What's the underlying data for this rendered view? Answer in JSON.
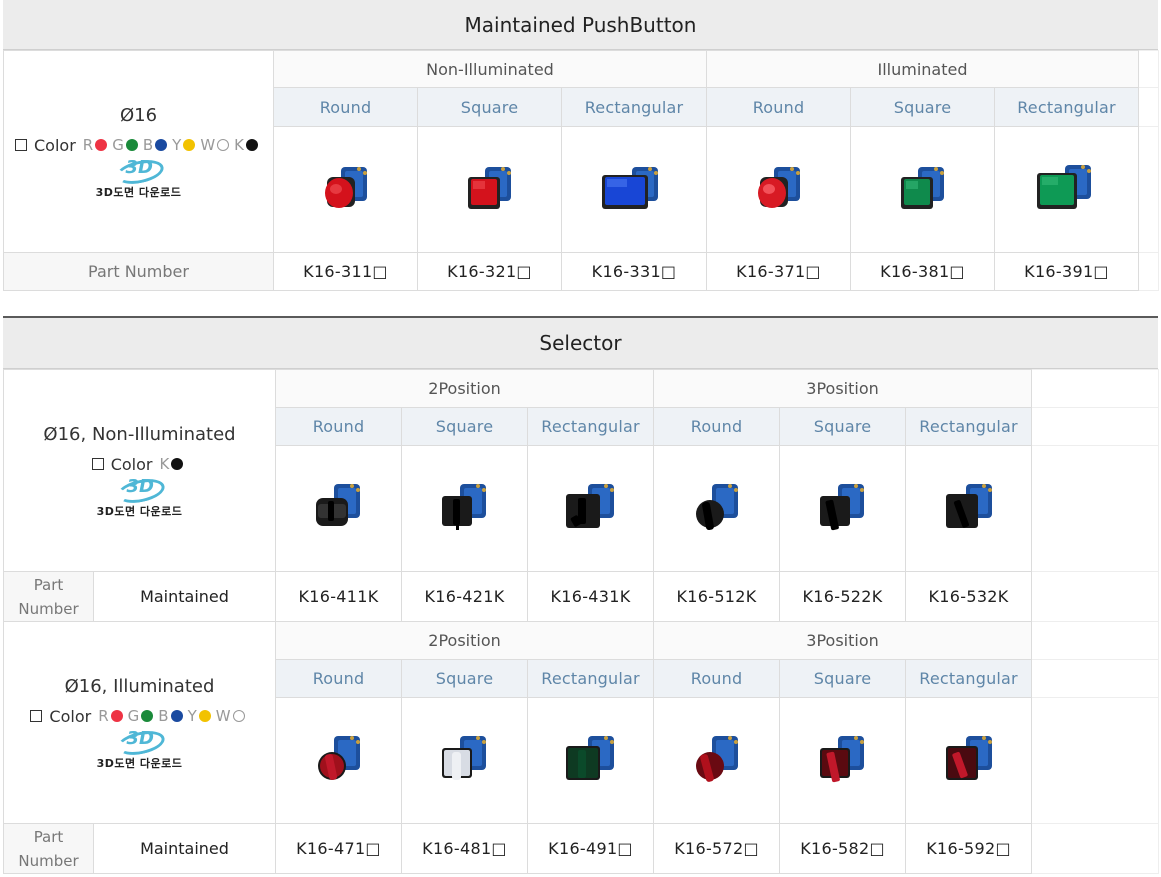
{
  "pushbutton": {
    "title": "Maintained PushButton",
    "desc_title": "Ø16",
    "color_label": "Color",
    "colors": [
      {
        "letter": "R",
        "hex": "#ee3344"
      },
      {
        "letter": "G",
        "hex": "#1a8a3a"
      },
      {
        "letter": "B",
        "hex": "#1a4aa0"
      },
      {
        "letter": "Y",
        "hex": "#f2c200"
      },
      {
        "letter": "W",
        "hex": "#ffffff"
      },
      {
        "letter": "K",
        "hex": "#111111"
      }
    ],
    "logo_text": "3D",
    "logo_caption": "3D도면 다운로드",
    "groups": [
      "Non-Illuminated",
      "Illuminated"
    ],
    "shapes": [
      "Round",
      "Square",
      "Rectangular",
      "Round",
      "Square",
      "Rectangular"
    ],
    "images": [
      "red-round-pushbutton",
      "red-square-pushbutton",
      "blue-rectangular-pushbutton",
      "red-round-illuminated-pushbutton",
      "green-square-illuminated-pushbutton",
      "green-rectangular-illuminated-pushbutton"
    ],
    "part_label": "Part Number",
    "parts": [
      "K16-311□",
      "K16-321□",
      "K16-331□",
      "K16-371□",
      "K16-381□",
      "K16-391□"
    ]
  },
  "selector": {
    "title": "Selector",
    "non_illuminated": {
      "desc_title": "Ø16, Non-Illuminated",
      "color_label": "Color",
      "colors": [
        {
          "letter": "K",
          "hex": "#111111"
        }
      ],
      "groups": [
        "2Position",
        "3Position"
      ],
      "shapes": [
        "Round",
        "Square",
        "Rectangular",
        "Round",
        "Square",
        "Rectangular"
      ],
      "part_label_1": "Part",
      "part_label_2": "Number",
      "type_label": "Maintained",
      "parts": [
        "K16-411K",
        "K16-421K",
        "K16-431K",
        "K16-512K",
        "K16-522K",
        "K16-532K"
      ]
    },
    "illuminated": {
      "desc_title": "Ø16, Illuminated",
      "color_label": "Color",
      "colors": [
        {
          "letter": "R",
          "hex": "#ee3344"
        },
        {
          "letter": "G",
          "hex": "#1a8a3a"
        },
        {
          "letter": "B",
          "hex": "#1a4aa0"
        },
        {
          "letter": "Y",
          "hex": "#f2c200"
        },
        {
          "letter": "W",
          "hex": "#ffffff"
        }
      ],
      "groups": [
        "2Position",
        "3Position"
      ],
      "shapes": [
        "Round",
        "Square",
        "Rectangular",
        "Round",
        "Square",
        "Rectangular"
      ],
      "part_label_1": "Part",
      "part_label_2": "Number",
      "type_label": "Maintained",
      "parts": [
        "K16-471□",
        "K16-481□",
        "K16-491□",
        "K16-572□",
        "K16-582□",
        "K16-592□"
      ]
    },
    "logo_text": "3D",
    "logo_caption": "3D도면 다운로드"
  }
}
